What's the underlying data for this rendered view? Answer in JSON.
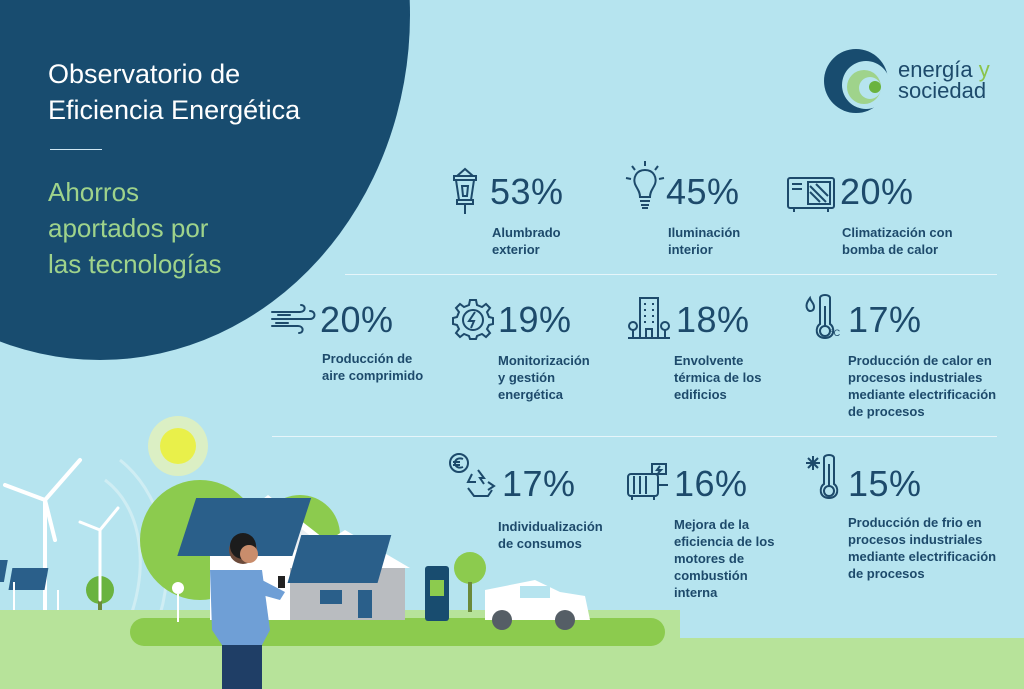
{
  "header": {
    "title_line1": "Observatorio de",
    "title_line2": "Eficiencia Energética",
    "subtitle_line1": "Ahorros",
    "subtitle_line2": "aportados por",
    "subtitle_line3": "las tecnologías"
  },
  "logo": {
    "word1": "energía",
    "word2": "y",
    "word3": "sociedad"
  },
  "colors": {
    "background": "#b6e4ef",
    "dark_blue": "#184c6f",
    "text": "#1d4a6b",
    "green": "#9fd38b",
    "grass": "#8ccb4e"
  },
  "stats": [
    {
      "value": "53%",
      "label": "Alumbrado\nexterior",
      "icon": "street-lamp-icon"
    },
    {
      "value": "45%",
      "label": "Iluminación\ninterior",
      "icon": "light-bulb-icon"
    },
    {
      "value": "20%",
      "label": "Climatización con\nbomba de calor",
      "icon": "heat-pump-icon"
    },
    {
      "value": "20%",
      "label": "Producción de\naire comprimido",
      "icon": "wind-icon"
    },
    {
      "value": "19%",
      "label": "Monitorización\ny gestión\nenergética",
      "icon": "gear-energy-icon"
    },
    {
      "value": "18%",
      "label": "Envolvente\ntérmica de los\nedificios",
      "icon": "building-icon"
    },
    {
      "value": "17%",
      "label": "Producción de calor en\nprocesos industriales\nmediante electrificación\nde procesos",
      "icon": "thermometer-heat-icon"
    },
    {
      "value": "17%",
      "label": "Individualización\nde consumos",
      "icon": "euro-recycle-icon"
    },
    {
      "value": "16%",
      "label": "Mejora de la\neficiencia de los\nmotores de\ncombustión\ninterna",
      "icon": "electric-motor-icon"
    },
    {
      "value": "15%",
      "label": "Producción de frio en\nprocesos industriales\nmediante electrificación\nde procesos",
      "icon": "thermometer-cold-icon"
    }
  ]
}
